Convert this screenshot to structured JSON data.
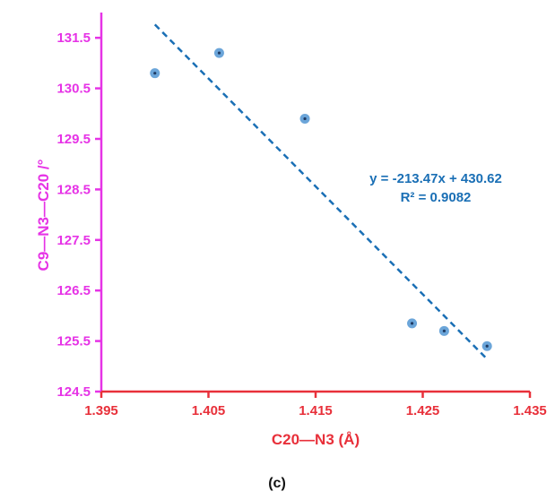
{
  "chart_data": {
    "type": "scatter",
    "xlabel": "C20—N3 (Å)",
    "ylabel": "C9—N3—C20 /°",
    "xlim": [
      1.395,
      1.435
    ],
    "ylim": [
      124.5,
      132.0
    ],
    "x_ticks": [
      "1.395",
      "1.405",
      "1.415",
      "1.425",
      "1.435"
    ],
    "y_ticks": [
      "124.5",
      "125.5",
      "126.5",
      "127.5",
      "128.5",
      "129.5",
      "130.5",
      "131.5"
    ],
    "grid": false,
    "series": [
      {
        "points": [
          {
            "x": 1.4,
            "y": 130.8
          },
          {
            "x": 1.406,
            "y": 131.2
          },
          {
            "x": 1.414,
            "y": 129.9
          },
          {
            "x": 1.424,
            "y": 125.85
          },
          {
            "x": 1.427,
            "y": 125.7
          },
          {
            "x": 1.431,
            "y": 125.4
          }
        ],
        "color": "#5b9bd5"
      }
    ],
    "trendline": {
      "slope": -213.47,
      "intercept": 430.62,
      "x_range": [
        1.4,
        1.431
      ],
      "color": "#1a6fb5",
      "style": "dashed",
      "equation": "y = -213.47x + 430.62",
      "r_squared": "R² = 0.9082"
    },
    "colors": {
      "y_axis": "#e633e6",
      "x_axis": "#e8303a"
    },
    "panel_label": "(c)"
  }
}
